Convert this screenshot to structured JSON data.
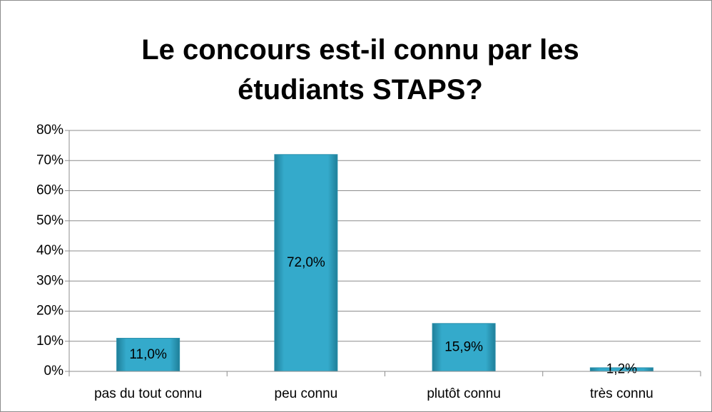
{
  "chart_data": {
    "type": "bar",
    "title": "Le concours est-il connu par les étudiants STAPS?",
    "categories": [
      "pas du tout connu",
      "peu connu",
      "plutôt connu",
      "très connu"
    ],
    "values": [
      11,
      72,
      15.9,
      1.2
    ],
    "value_labels": [
      "11,0%",
      "72,0%",
      "15,9%",
      "1,2%"
    ],
    "color": "#31a9c8",
    "ylim": [
      0,
      80
    ],
    "yticks": [
      {
        "value": 0,
        "label": "0%"
      },
      {
        "value": 10,
        "label": "10%"
      },
      {
        "value": 20,
        "label": "20%"
      },
      {
        "value": 30,
        "label": "30%"
      },
      {
        "value": 40,
        "label": "40%"
      },
      {
        "value": 50,
        "label": "50%"
      },
      {
        "value": 60,
        "label": "60%"
      },
      {
        "value": 70,
        "label": "70%"
      },
      {
        "value": 80,
        "label": "80%"
      }
    ],
    "grid": true
  }
}
